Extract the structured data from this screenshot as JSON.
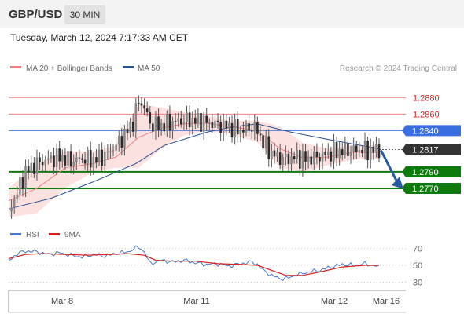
{
  "header": {
    "symbol": "GBP/USD",
    "timeframe": "30 MIN",
    "timestamp": "Tuesday, March 12, 2024 7:17:33 AM CET"
  },
  "legend": {
    "ma20": {
      "label": "MA 20 + Bollinger Bands",
      "color": "#f08080"
    },
    "ma50": {
      "label": "MA 50",
      "color": "#2a4f8f"
    },
    "credit": "Research © 2024 Trading Central"
  },
  "rsi_legend": {
    "rsi": {
      "label": "RSI",
      "color": "#4a78d0"
    },
    "ma9": {
      "label": "9MA",
      "color": "#d81e1e"
    }
  },
  "chart_data": [
    {
      "type": "candlestick",
      "x_labels": [
        "Mar 8",
        "Mar 11",
        "Mar 12",
        "Mar 16"
      ],
      "ylim": [
        1.273,
        1.2905
      ],
      "last_price": 1.2817,
      "current_price_label": "1.2817",
      "levels": [
        {
          "value": 1.288,
          "label": "1.2880",
          "kind": "resistance",
          "color": "#f08080"
        },
        {
          "value": 1.286,
          "label": "1.2860",
          "kind": "resistance",
          "color": "#f08080"
        },
        {
          "value": 1.284,
          "label": "1.2840",
          "kind": "pivot",
          "color": "#4a78e0"
        },
        {
          "value": 1.279,
          "label": "1.2790",
          "kind": "support",
          "color": "#0d7a0d"
        },
        {
          "value": 1.277,
          "label": "1.2770",
          "kind": "support",
          "color": "#0d7a0d"
        }
      ],
      "forecast_arrow": {
        "from": 1.2817,
        "to": 1.277,
        "color": "#2a5aa0"
      },
      "price_path": [
        [
          0,
          1.2742
        ],
        [
          6,
          1.2765
        ],
        [
          12,
          1.279
        ],
        [
          20,
          1.28
        ],
        [
          28,
          1.2805
        ],
        [
          36,
          1.2808
        ],
        [
          44,
          1.2803
        ],
        [
          52,
          1.2806
        ],
        [
          60,
          1.2804
        ],
        [
          68,
          1.281
        ],
        [
          76,
          1.2822
        ],
        [
          82,
          1.2835
        ],
        [
          88,
          1.285
        ],
        [
          92,
          1.2876
        ],
        [
          96,
          1.2868
        ],
        [
          100,
          1.2848
        ],
        [
          108,
          1.2846
        ],
        [
          116,
          1.285
        ],
        [
          124,
          1.2853
        ],
        [
          132,
          1.2852
        ],
        [
          140,
          1.285
        ],
        [
          148,
          1.2847
        ],
        [
          156,
          1.2844
        ],
        [
          164,
          1.284
        ],
        [
          172,
          1.2844
        ],
        [
          176,
          1.284
        ],
        [
          180,
          1.2825
        ],
        [
          186,
          1.2812
        ],
        [
          192,
          1.2806
        ],
        [
          198,
          1.2806
        ],
        [
          204,
          1.2808
        ],
        [
          210,
          1.2805
        ],
        [
          218,
          1.2808
        ],
        [
          226,
          1.2812
        ],
        [
          234,
          1.2815
        ],
        [
          242,
          1.2816
        ],
        [
          250,
          1.2817
        ],
        [
          256,
          1.2815
        ],
        [
          262,
          1.2817
        ]
      ],
      "ma20": [
        [
          0,
          1.2755
        ],
        [
          20,
          1.277
        ],
        [
          40,
          1.2795
        ],
        [
          60,
          1.28
        ],
        [
          76,
          1.2808
        ],
        [
          92,
          1.2832
        ],
        [
          108,
          1.2843
        ],
        [
          124,
          1.2848
        ],
        [
          140,
          1.2849
        ],
        [
          156,
          1.2845
        ],
        [
          176,
          1.284
        ],
        [
          192,
          1.2818
        ],
        [
          208,
          1.2807
        ],
        [
          226,
          1.2808
        ],
        [
          244,
          1.2814
        ],
        [
          262,
          1.2814
        ]
      ],
      "bb_upper": [
        [
          0,
          1.277
        ],
        [
          20,
          1.28
        ],
        [
          40,
          1.2815
        ],
        [
          60,
          1.2815
        ],
        [
          76,
          1.2822
        ],
        [
          92,
          1.2872
        ],
        [
          108,
          1.2868
        ],
        [
          124,
          1.2862
        ],
        [
          140,
          1.2858
        ],
        [
          156,
          1.2852
        ],
        [
          176,
          1.2852
        ],
        [
          192,
          1.2845
        ],
        [
          208,
          1.2825
        ],
        [
          226,
          1.2818
        ],
        [
          244,
          1.2822
        ],
        [
          262,
          1.2822
        ]
      ],
      "bb_lower": [
        [
          0,
          1.2735
        ],
        [
          20,
          1.274
        ],
        [
          40,
          1.277
        ],
        [
          60,
          1.279
        ],
        [
          76,
          1.2795
        ],
        [
          92,
          1.2795
        ],
        [
          108,
          1.2818
        ],
        [
          124,
          1.2834
        ],
        [
          140,
          1.284
        ],
        [
          156,
          1.2836
        ],
        [
          176,
          1.2826
        ],
        [
          192,
          1.2795
        ],
        [
          208,
          1.279
        ],
        [
          226,
          1.2798
        ],
        [
          244,
          1.2805
        ],
        [
          262,
          1.2806
        ]
      ],
      "ma50": [
        [
          0,
          1.2745
        ],
        [
          30,
          1.2758
        ],
        [
          60,
          1.2778
        ],
        [
          90,
          1.28
        ],
        [
          110,
          1.2822
        ],
        [
          140,
          1.2838
        ],
        [
          160,
          1.2845
        ],
        [
          176,
          1.2848
        ],
        [
          200,
          1.2838
        ],
        [
          230,
          1.2828
        ],
        [
          262,
          1.2818
        ]
      ]
    },
    {
      "type": "line",
      "name": "RSI",
      "ylim": [
        20,
        80
      ],
      "y_ticks": [
        70,
        50,
        30
      ],
      "rsi": [
        [
          0,
          55
        ],
        [
          6,
          64
        ],
        [
          12,
          67
        ],
        [
          20,
          66
        ],
        [
          28,
          63
        ],
        [
          36,
          65
        ],
        [
          44,
          62
        ],
        [
          52,
          60
        ],
        [
          60,
          63
        ],
        [
          68,
          61
        ],
        [
          76,
          64
        ],
        [
          84,
          66
        ],
        [
          92,
          72
        ],
        [
          96,
          66
        ],
        [
          100,
          52
        ],
        [
          108,
          56
        ],
        [
          116,
          54
        ],
        [
          124,
          56
        ],
        [
          132,
          53
        ],
        [
          140,
          51
        ],
        [
          148,
          52
        ],
        [
          156,
          49
        ],
        [
          164,
          52
        ],
        [
          172,
          54
        ],
        [
          176,
          51
        ],
        [
          180,
          44
        ],
        [
          186,
          38
        ],
        [
          192,
          34
        ],
        [
          198,
          35
        ],
        [
          204,
          39
        ],
        [
          212,
          42
        ],
        [
          220,
          44
        ],
        [
          228,
          48
        ],
        [
          236,
          51
        ],
        [
          244,
          50
        ],
        [
          252,
          52
        ],
        [
          262,
          48
        ]
      ],
      "ma9": [
        [
          0,
          58
        ],
        [
          12,
          63
        ],
        [
          24,
          64
        ],
        [
          40,
          63
        ],
        [
          56,
          62
        ],
        [
          72,
          63
        ],
        [
          84,
          64
        ],
        [
          96,
          62
        ],
        [
          104,
          56
        ],
        [
          116,
          55
        ],
        [
          132,
          55
        ],
        [
          148,
          52
        ],
        [
          164,
          51
        ],
        [
          176,
          50
        ],
        [
          186,
          44
        ],
        [
          196,
          38
        ],
        [
          208,
          38
        ],
        [
          220,
          42
        ],
        [
          236,
          48
        ],
        [
          252,
          50
        ],
        [
          262,
          50
        ]
      ]
    }
  ]
}
